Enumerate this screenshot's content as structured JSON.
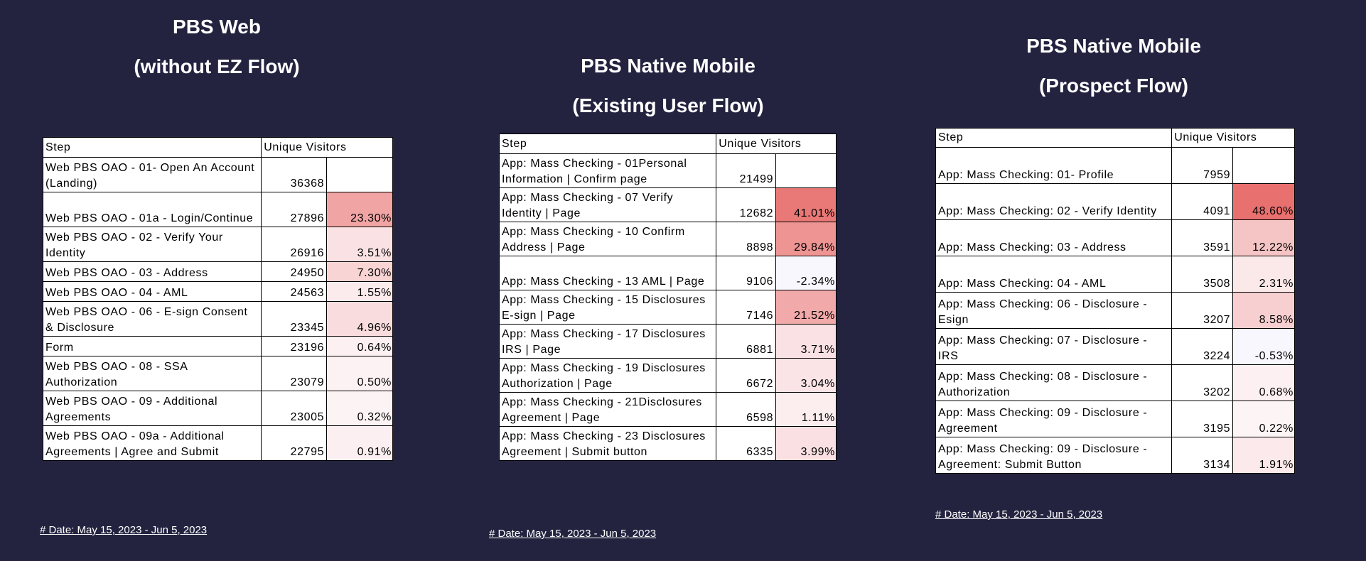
{
  "colors": {
    "background": "#232340",
    "drop_high": "#e8706e",
    "drop_mid": "#f0a8a8",
    "drop_low": "#fbe4e5"
  },
  "header": {
    "step": "Step",
    "visitors": "Unique Visitors"
  },
  "panels": [
    {
      "title_line1": "PBS Web",
      "title_line2": "(without EZ Flow)",
      "date": "# Date: May 15, 2023 - Jun 5, 2023",
      "rows": [
        {
          "step": "Web PBS OAO - 01- Open An Account (Landing)",
          "visitors": "36368",
          "drop": "",
          "drop_value": null
        },
        {
          "step": "Web PBS OAO - 01a - Login/Continue",
          "visitors": "27896",
          "drop": "23.30%",
          "drop_value": 23.3
        },
        {
          "step": "Web PBS OAO - 02 - Verify Your Identity",
          "visitors": "26916",
          "drop": "3.51%",
          "drop_value": 3.51
        },
        {
          "step": "Web PBS OAO - 03 - Address",
          "visitors": "24950",
          "drop": "7.30%",
          "drop_value": 7.3
        },
        {
          "step": "Web PBS OAO - 04 - AML",
          "visitors": "24563",
          "drop": "1.55%",
          "drop_value": 1.55
        },
        {
          "step": "Web PBS OAO - 06 - E-sign Consent & Disclosure",
          "visitors": "23345",
          "drop": "4.96%",
          "drop_value": 4.96
        },
        {
          "step": "Form",
          "visitors": "23196",
          "drop": "0.64%",
          "drop_value": 0.64
        },
        {
          "step": "Web PBS OAO - 08 - SSA Authorization",
          "visitors": "23079",
          "drop": "0.50%",
          "drop_value": 0.5
        },
        {
          "step": "Web PBS OAO - 09 - Additional Agreements",
          "visitors": "23005",
          "drop": "0.32%",
          "drop_value": 0.32
        },
        {
          "step": "Web PBS OAO - 09a - Additional Agreements | Agree and Submit",
          "visitors": "22795",
          "drop": "0.91%",
          "drop_value": 0.91
        }
      ]
    },
    {
      "title_line1": "PBS Native Mobile",
      "title_line2": "(Existing User Flow)",
      "date": "# Date: May 15, 2023 - Jun 5, 2023",
      "rows": [
        {
          "step": "App: Mass Checking - 01Personal Information | Confirm page",
          "visitors": "21499",
          "drop": "",
          "drop_value": null
        },
        {
          "step": "App: Mass Checking - 07 Verify Identity | Page",
          "visitors": "12682",
          "drop": "41.01%",
          "drop_value": 41.01
        },
        {
          "step": "App: Mass Checking - 10 Confirm Address | Page",
          "visitors": "8898",
          "drop": "29.84%",
          "drop_value": 29.84
        },
        {
          "step": "App: Mass Checking - 13 AML | Page",
          "visitors": "9106",
          "drop": "-2.34%",
          "drop_value": -2.34
        },
        {
          "step": "App: Mass Checking - 15 Disclosures E-sign | Page",
          "visitors": "7146",
          "drop": "21.52%",
          "drop_value": 21.52
        },
        {
          "step": "App: Mass Checking - 17 Disclosures IRS | Page",
          "visitors": "6881",
          "drop": "3.71%",
          "drop_value": 3.71
        },
        {
          "step": "App: Mass Checking - 19 Disclosures Authorization | Page",
          "visitors": "6672",
          "drop": "3.04%",
          "drop_value": 3.04
        },
        {
          "step": "App: Mass Checking - 21Disclosures Agreement | Page",
          "visitors": "6598",
          "drop": "1.11%",
          "drop_value": 1.11
        },
        {
          "step": "App: Mass Checking - 23 Disclosures Agreement | Submit button",
          "visitors": "6335",
          "drop": "3.99%",
          "drop_value": 3.99
        }
      ]
    },
    {
      "title_line1": "PBS Native Mobile",
      "title_line2": "(Prospect Flow)",
      "date": "# Date: May 15, 2023 - Jun 5, 2023",
      "rows": [
        {
          "step": "App: Mass Checking: 01- Profile",
          "visitors": "7959",
          "drop": "",
          "drop_value": null
        },
        {
          "step": "App: Mass Checking: 02 - Verify Identity",
          "visitors": "4091",
          "drop": "48.60%",
          "drop_value": 48.6
        },
        {
          "step": "App: Mass Checking: 03 - Address",
          "visitors": "3591",
          "drop": "12.22%",
          "drop_value": 12.22
        },
        {
          "step": "App: Mass Checking: 04 - AML",
          "visitors": "3508",
          "drop": "2.31%",
          "drop_value": 2.31
        },
        {
          "step": "App: Mass Checking: 06 - Disclosure - Esign",
          "visitors": "3207",
          "drop": "8.58%",
          "drop_value": 8.58
        },
        {
          "step": "App: Mass Checking: 07 - Disclosure - IRS",
          "visitors": "3224",
          "drop": "-0.53%",
          "drop_value": -0.53
        },
        {
          "step": "App: Mass Checking: 08 - Disclosure - Authorization",
          "visitors": "3202",
          "drop": "0.68%",
          "drop_value": 0.68
        },
        {
          "step": "App: Mass Checking: 09 - Disclosure - Agreement",
          "visitors": "3195",
          "drop": "0.22%",
          "drop_value": 0.22
        },
        {
          "step": "App: Mass Checking: 09 - Disclosure - Agreement: Submit Button",
          "visitors": "3134",
          "drop": "1.91%",
          "drop_value": 1.91
        }
      ]
    }
  ]
}
